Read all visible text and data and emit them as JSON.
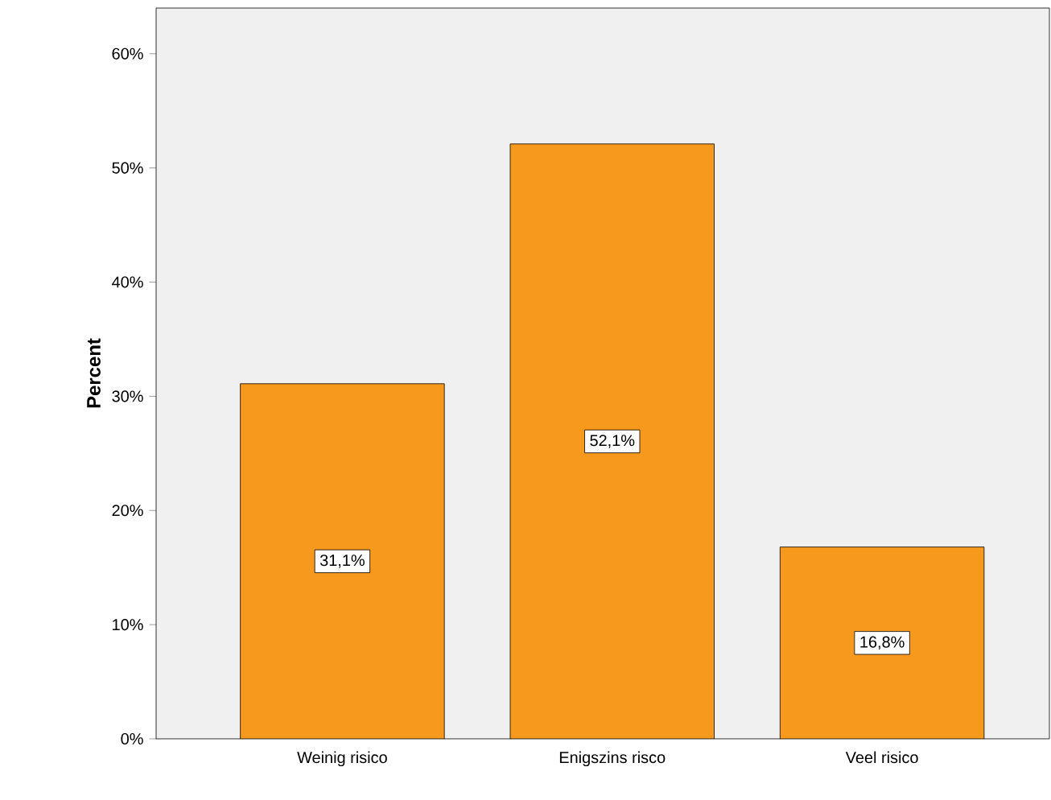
{
  "chart_data": {
    "type": "bar",
    "ylabel": "Percent",
    "categories": [
      "Weinig risico",
      "Enigszins risco",
      "Veel risico"
    ],
    "values": [
      31.1,
      52.1,
      16.8
    ],
    "value_labels": [
      "31,1%",
      "52,1%",
      "16,8%"
    ],
    "color": "#f7991c",
    "ylim": [
      0,
      64
    ],
    "yticks": [
      {
        "value": 0,
        "label": "0%"
      },
      {
        "value": 10,
        "label": "10%"
      },
      {
        "value": 20,
        "label": "20%"
      },
      {
        "value": 30,
        "label": "30%"
      },
      {
        "value": 40,
        "label": "40%"
      },
      {
        "value": 50,
        "label": "50%"
      },
      {
        "value": 60,
        "label": "60%"
      }
    ],
    "grid": false
  }
}
